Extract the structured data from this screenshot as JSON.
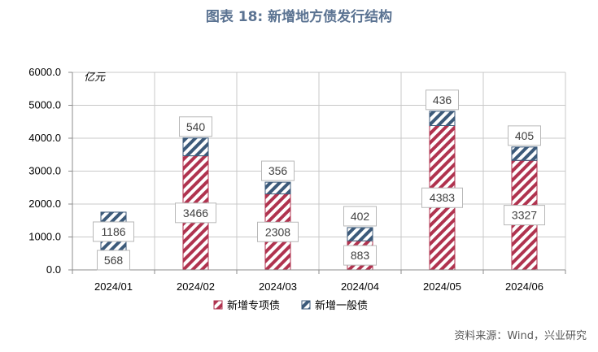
{
  "title": "图表 18: 新增地方债发行结构",
  "source": "资料来源：Wind，兴业研究",
  "chart_data": {
    "type": "bar",
    "stacked": true,
    "unit_label": "亿元",
    "categories": [
      "2024/01",
      "2024/02",
      "2024/03",
      "2024/04",
      "2024/05",
      "2024/06"
    ],
    "series": [
      {
        "name": "新增专项债",
        "values": [
          568,
          3466,
          2308,
          883,
          4383,
          3327
        ],
        "color": "#b0334f"
      },
      {
        "name": "新增一般债",
        "values": [
          1186,
          540,
          356,
          402,
          436,
          405
        ],
        "color": "#3c5a7a"
      }
    ],
    "ylim": [
      0,
      6000
    ],
    "yticks": [
      "0.0",
      "1000.0",
      "2000.0",
      "3000.0",
      "4000.0",
      "5000.0",
      "6000.0"
    ],
    "grid": true,
    "legend_position": "bottom"
  }
}
